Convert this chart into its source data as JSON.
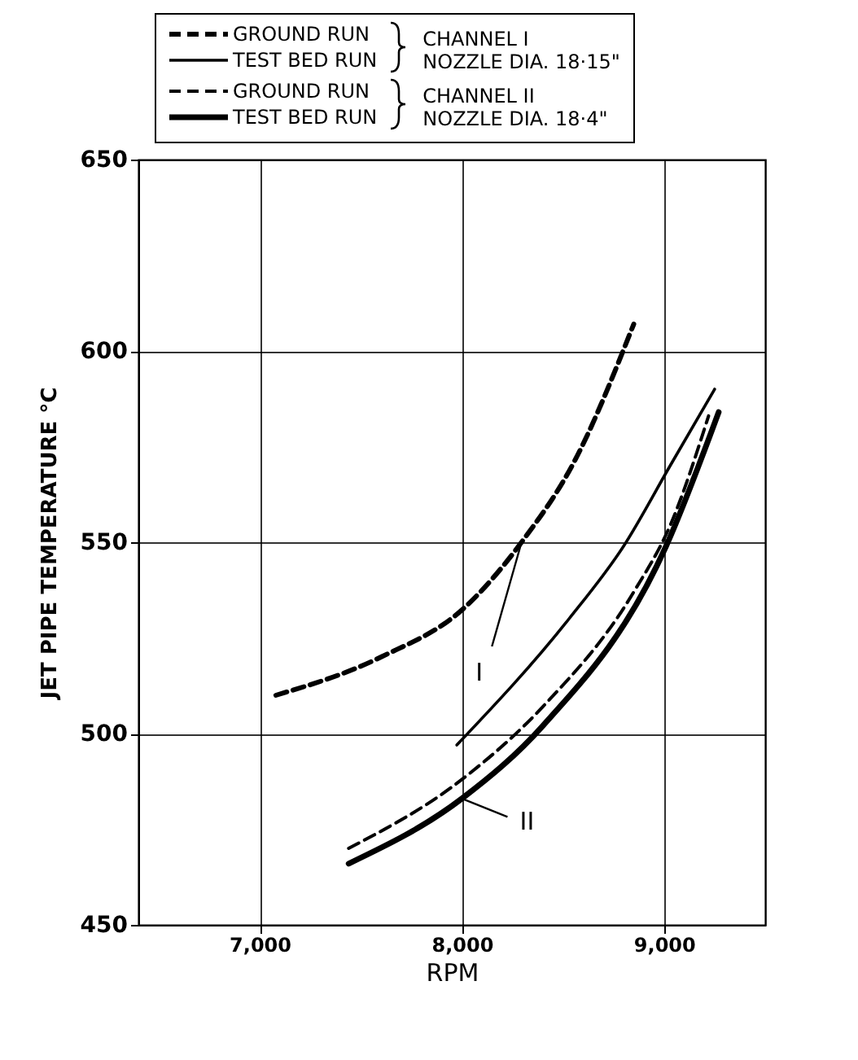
{
  "chart_data": {
    "type": "line",
    "xlabel": "RPM",
    "ylabel": "JET PIPE TEMPERATURE °C",
    "xlim": [
      6400,
      9500
    ],
    "ylim": [
      450,
      650
    ],
    "xticks": [
      {
        "value": 7000,
        "label": "7,000"
      },
      {
        "value": 8000,
        "label": "8,000"
      },
      {
        "value": 9000,
        "label": "9,000"
      }
    ],
    "yticks": [
      450,
      500,
      550,
      600,
      650
    ],
    "grid": true,
    "legend": "top",
    "series": [
      {
        "name": "GROUND RUN",
        "color": "#000000",
        "line_style": "dashed",
        "x": [
          7080,
          7600,
          8015,
          8295,
          8555,
          8850
        ],
        "values": [
          510,
          520,
          533,
          550,
          571,
          607
        ]
      },
      {
        "name": "TEST BED RUN",
        "color": "#000000",
        "line_style": "solid",
        "x": [
          7975,
          8530,
          8800,
          9030,
          9250
        ],
        "values": [
          497,
          530,
          549,
          570,
          590
        ]
      },
      {
        "name": "GROUND RUN",
        "color": "#000000",
        "line_style": "dashed",
        "x": [
          7440,
          8000,
          8400,
          8850,
          9035,
          9220
        ],
        "values": [
          470,
          488,
          507,
          537,
          555,
          583
        ]
      },
      {
        "name": "TEST BED RUN",
        "color": "#000000",
        "line_style": "solid",
        "x": [
          7440,
          8000,
          8400,
          9010,
          9270
        ],
        "values": [
          466,
          483,
          502,
          549,
          584
        ]
      }
    ],
    "annotations": [
      "CHANNEL I",
      "NOZZLE DIA. 18·15\"",
      "CHANNEL II",
      "NOZZLE DIA. 18·4\"",
      {
        "text": "I",
        "x": 8295,
        "y": 550
      },
      {
        "text": "II",
        "x": 8000,
        "y": 483
      }
    ]
  }
}
